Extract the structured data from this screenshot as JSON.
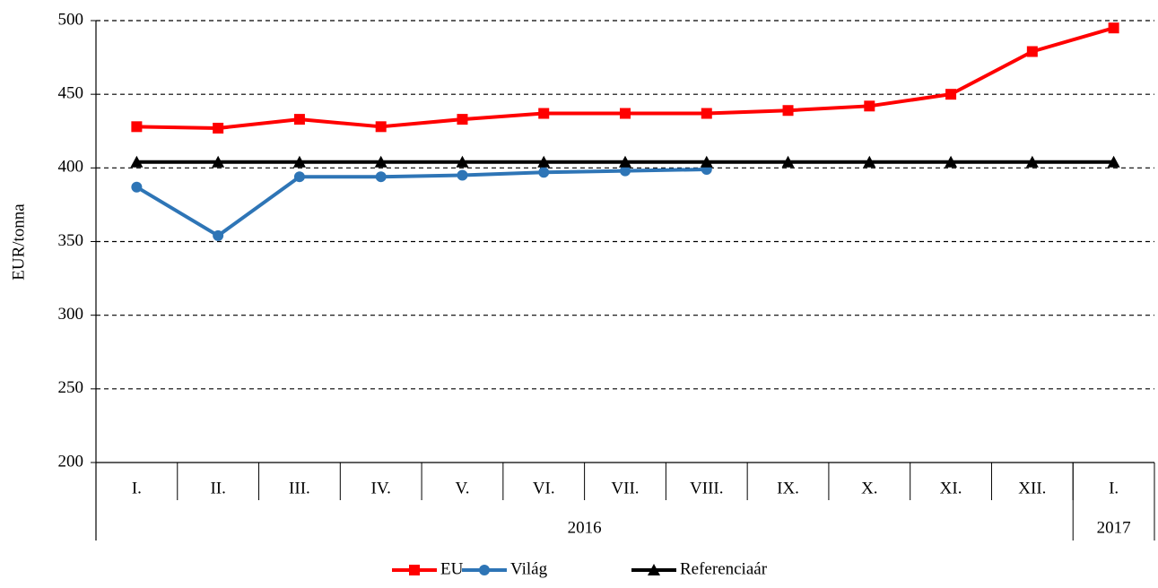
{
  "chart_data": {
    "type": "line",
    "y_label": "EUR/tonna",
    "categories": [
      "I.",
      "II.",
      "III.",
      "IV.",
      "V.",
      "VI.",
      "VII.",
      "VIII.",
      "IX.",
      "X.",
      "XI.",
      "XII.",
      "I."
    ],
    "years": [
      "2016",
      "2016",
      "2016",
      "2016",
      "2016",
      "2016",
      "2016",
      "2016",
      "2016",
      "2016",
      "2016",
      "2016",
      "2017"
    ],
    "series": [
      {
        "name": "EU",
        "color": "#ff0000",
        "marker": "square",
        "values": [
          428,
          427,
          433,
          428,
          433,
          437,
          437,
          437,
          439,
          442,
          450,
          479,
          495
        ]
      },
      {
        "name": "Világ",
        "color": "#2e75b6",
        "marker": "circle",
        "values": [
          387,
          354,
          394,
          394,
          395,
          397,
          398,
          399,
          null,
          null,
          null,
          null,
          null
        ]
      },
      {
        "name": "Referenciaár",
        "color": "#000000",
        "marker": "triangle",
        "values": [
          404,
          404,
          404,
          404,
          404,
          404,
          404,
          404,
          404,
          404,
          404,
          404,
          404
        ]
      }
    ],
    "ylim": [
      200,
      500
    ],
    "yticks": [
      200,
      250,
      300,
      350,
      400,
      450,
      500
    ],
    "grid": true,
    "legend": "bottom"
  }
}
